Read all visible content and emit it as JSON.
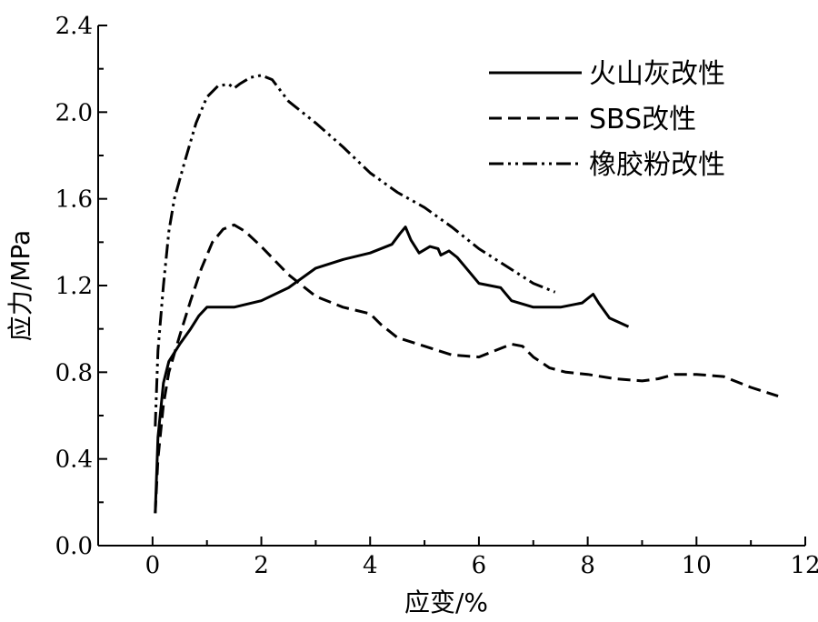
{
  "chart_data": {
    "type": "line",
    "title": "",
    "xlabel": "应变/%",
    "ylabel": "应力/MPa",
    "xlim": [
      -1,
      12
    ],
    "ylim": [
      0,
      2.4
    ],
    "xticks": [
      "0",
      "2",
      "4",
      "6",
      "8",
      "10",
      "12"
    ],
    "yticks": [
      "0.0",
      "0.4",
      "0.8",
      "1.2",
      "1.6",
      "2.0",
      "2.4"
    ],
    "grid": false,
    "legend_position": "top-right",
    "series": [
      {
        "name": "火山灰改性",
        "dash": "solid",
        "x": [
          0.05,
          0.1,
          0.2,
          0.3,
          0.5,
          0.7,
          0.85,
          1.0,
          1.1,
          1.5,
          2.0,
          2.5,
          3.0,
          3.5,
          4.0,
          4.4,
          4.55,
          4.65,
          4.75,
          4.9,
          5.1,
          5.25,
          5.3,
          5.45,
          5.6,
          5.8,
          6.0,
          6.2,
          6.4,
          6.6,
          7.0,
          7.5,
          7.9,
          8.1,
          8.2,
          8.4,
          8.75
        ],
        "y": [
          0.15,
          0.5,
          0.75,
          0.85,
          0.93,
          1.0,
          1.06,
          1.1,
          1.1,
          1.1,
          1.13,
          1.19,
          1.28,
          1.32,
          1.35,
          1.39,
          1.44,
          1.47,
          1.41,
          1.35,
          1.38,
          1.37,
          1.34,
          1.36,
          1.33,
          1.27,
          1.21,
          1.2,
          1.19,
          1.13,
          1.1,
          1.1,
          1.12,
          1.16,
          1.12,
          1.05,
          1.01
        ]
      },
      {
        "name": "SBS改性",
        "dash": "dashed",
        "x": [
          0.05,
          0.1,
          0.2,
          0.3,
          0.5,
          0.7,
          0.9,
          1.1,
          1.3,
          1.5,
          1.7,
          2.0,
          2.5,
          3.0,
          3.5,
          4.0,
          4.2,
          4.5,
          5.0,
          5.5,
          6.0,
          6.3,
          6.6,
          6.8,
          7.0,
          7.3,
          7.6,
          8.0,
          8.5,
          9.0,
          9.3,
          9.6,
          10.0,
          10.5,
          11.0,
          11.5
        ],
        "y": [
          0.15,
          0.4,
          0.65,
          0.8,
          0.97,
          1.13,
          1.28,
          1.4,
          1.46,
          1.48,
          1.45,
          1.38,
          1.25,
          1.15,
          1.1,
          1.07,
          1.02,
          0.96,
          0.92,
          0.88,
          0.87,
          0.9,
          0.93,
          0.92,
          0.87,
          0.82,
          0.8,
          0.79,
          0.77,
          0.76,
          0.77,
          0.79,
          0.79,
          0.78,
          0.73,
          0.69
        ]
      },
      {
        "name": "橡胶粉改性",
        "dash": "dash-dot-dot",
        "x": [
          0.05,
          0.1,
          0.2,
          0.3,
          0.4,
          0.6,
          0.8,
          1.0,
          1.2,
          1.4,
          1.5,
          1.6,
          1.8,
          2.0,
          2.2,
          2.5,
          3.0,
          3.5,
          4.0,
          4.5,
          5.0,
          5.5,
          6.0,
          6.5,
          7.0,
          7.4
        ],
        "y": [
          0.55,
          0.9,
          1.2,
          1.45,
          1.6,
          1.78,
          1.95,
          2.07,
          2.12,
          2.13,
          2.11,
          2.13,
          2.16,
          2.17,
          2.15,
          2.05,
          1.95,
          1.84,
          1.72,
          1.63,
          1.56,
          1.47,
          1.37,
          1.29,
          1.21,
          1.17
        ]
      }
    ]
  }
}
